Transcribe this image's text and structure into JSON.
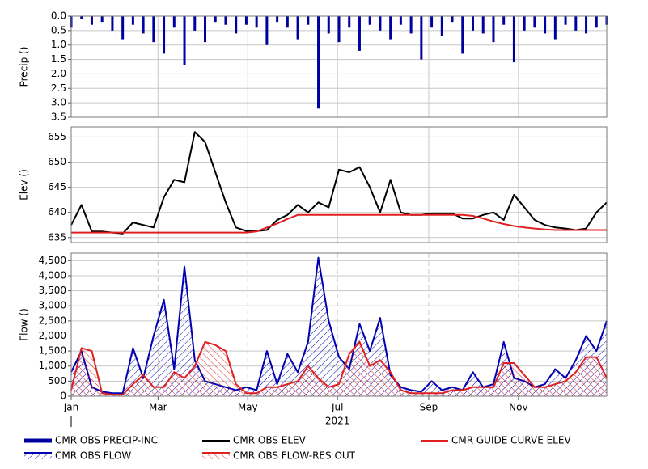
{
  "chart_data": [
    {
      "type": "bar",
      "ylabel": "Precip ()",
      "inverted": true,
      "grid": true,
      "x": [
        1,
        8,
        15,
        22,
        29,
        36,
        43,
        50,
        57,
        64,
        71,
        78,
        85,
        92,
        99,
        106,
        113,
        120,
        127,
        134,
        141,
        148,
        155,
        162,
        169,
        176,
        183,
        190,
        197,
        204,
        211,
        218,
        225,
        232,
        239,
        246,
        253,
        260,
        267,
        274,
        281,
        288,
        295,
        302,
        309,
        316,
        323,
        330,
        337,
        344,
        351,
        358,
        365
      ],
      "xlim": [
        1,
        365
      ],
      "xticks": [
        1,
        60,
        121,
        182,
        244,
        305
      ],
      "ylim": [
        0,
        3.5
      ],
      "yticks": [
        {
          "value": 0,
          "label": "0.0"
        },
        0.5,
        {
          "value": 1,
          "label": "1.0"
        },
        1.5,
        {
          "value": 2,
          "label": "2.0"
        },
        2.5,
        {
          "value": 3,
          "label": "3.0"
        },
        3.5
      ],
      "series": [
        {
          "name": "CMR OBS PRECIP-INC",
          "color": "#0000a0",
          "values": [
            0.4,
            0.1,
            0.3,
            0.2,
            0.5,
            0.8,
            0.3,
            0.6,
            0.9,
            1.3,
            0.4,
            1.7,
            0.5,
            0.9,
            0.2,
            0.3,
            0.6,
            0.3,
            0.4,
            1.0,
            0.2,
            0.4,
            0.8,
            0.3,
            3.2,
            0.6,
            0.9,
            0.4,
            1.2,
            0.3,
            0.5,
            0.8,
            0.3,
            0.6,
            1.5,
            0.4,
            0.7,
            0.2,
            1.3,
            0.5,
            0.6,
            0.9,
            0.3,
            1.6,
            0.5,
            0.4,
            0.6,
            0.8,
            0.3,
            0.5,
            0.6,
            0.4,
            0.3
          ]
        }
      ]
    },
    {
      "type": "line",
      "ylabel": "Elev ()",
      "grid": true,
      "x": [
        1,
        8,
        15,
        22,
        29,
        36,
        43,
        50,
        57,
        64,
        71,
        78,
        85,
        92,
        99,
        106,
        113,
        120,
        127,
        134,
        141,
        148,
        155,
        162,
        169,
        176,
        183,
        190,
        197,
        204,
        211,
        218,
        225,
        232,
        239,
        246,
        253,
        260,
        267,
        274,
        281,
        288,
        295,
        302,
        309,
        316,
        323,
        330,
        337,
        344,
        351,
        358,
        365
      ],
      "xlim": [
        1,
        365
      ],
      "xticks": [
        1,
        60,
        121,
        182,
        244,
        305
      ],
      "ylim": [
        634,
        657
      ],
      "yticks": [
        635,
        640,
        645,
        650,
        655
      ],
      "series": [
        {
          "name": "CMR OBS ELEV",
          "color": "#000000",
          "values": [
            637.5,
            641.5,
            636.2,
            636.2,
            636,
            635.8,
            638,
            637.5,
            637,
            643,
            646.5,
            646,
            656,
            654,
            648,
            642,
            637,
            636.3,
            636.3,
            636.5,
            638.5,
            639.5,
            641.5,
            640,
            642,
            641,
            648.5,
            648,
            649,
            645,
            640,
            646.5,
            640,
            639.5,
            639.5,
            639.8,
            639.8,
            639.8,
            638.8,
            638.8,
            639.5,
            640,
            638.5,
            643.5,
            641,
            638.5,
            637.5,
            637,
            636.8,
            636.5,
            636.8,
            640,
            642
          ]
        },
        {
          "name": "CMR GUIDE CURVE ELEV",
          "color": "#e02020",
          "values": [
            636,
            636,
            636,
            636,
            636,
            636,
            636,
            636,
            636,
            636,
            636,
            636,
            636,
            636,
            636,
            636,
            636,
            636,
            636.2,
            637,
            637.8,
            638.7,
            639.5,
            639.5,
            639.5,
            639.5,
            639.5,
            639.5,
            639.5,
            639.5,
            639.5,
            639.5,
            639.5,
            639.5,
            639.5,
            639.5,
            639.5,
            639.5,
            639.5,
            639.3,
            638.8,
            638.2,
            637.7,
            637.3,
            637,
            636.8,
            636.6,
            636.5,
            636.5,
            636.5,
            636.5,
            636.5,
            636.5
          ]
        }
      ]
    },
    {
      "type": "area",
      "ylabel": "Flow ()",
      "grid": true,
      "x_label": "2021",
      "x": [
        1,
        8,
        15,
        22,
        29,
        36,
        43,
        50,
        57,
        64,
        71,
        78,
        85,
        92,
        99,
        106,
        113,
        120,
        127,
        134,
        141,
        148,
        155,
        162,
        169,
        176,
        183,
        190,
        197,
        204,
        211,
        218,
        225,
        232,
        239,
        246,
        253,
        260,
        267,
        274,
        281,
        288,
        295,
        302,
        309,
        316,
        323,
        330,
        337,
        344,
        351,
        358,
        365
      ],
      "xlim": [
        1,
        365
      ],
      "xticks": [
        {
          "value": 1,
          "label": "Jan"
        },
        {
          "value": 60,
          "label": "Mar"
        },
        {
          "value": 121,
          "label": "May"
        },
        {
          "value": 182,
          "label": "Jul"
        },
        {
          "value": 244,
          "label": "Sep"
        },
        {
          "value": 305,
          "label": "Nov"
        }
      ],
      "ylim": [
        0,
        4750
      ],
      "yticks": [
        0,
        500,
        {
          "value": 1000,
          "label": "1,000"
        },
        {
          "value": 1500,
          "label": "1,500"
        },
        {
          "value": 2000,
          "label": "2,000"
        },
        {
          "value": 2500,
          "label": "2,500"
        },
        {
          "value": 3000,
          "label": "3,000"
        },
        {
          "value": 3500,
          "label": "3,500"
        },
        {
          "value": 4000,
          "label": "4,000"
        },
        {
          "value": 4500,
          "label": "4,500"
        }
      ],
      "series": [
        {
          "name": "CMR OBS FLOW",
          "color": "#0000b0",
          "values": [
            800,
            1500,
            300,
            150,
            100,
            100,
            1600,
            600,
            2000,
            3200,
            900,
            4300,
            1200,
            500,
            400,
            300,
            200,
            300,
            200,
            1500,
            400,
            1400,
            800,
            1800,
            4600,
            2500,
            1300,
            900,
            2400,
            1500,
            2600,
            700,
            300,
            200,
            150,
            500,
            200,
            300,
            200,
            800,
            300,
            400,
            1800,
            600,
            500,
            300,
            400,
            900,
            600,
            1200,
            2000,
            1500,
            2500
          ]
        },
        {
          "name": "CMR OBS FLOW-RES OUT",
          "color": "#e02020",
          "values": [
            200,
            1600,
            1500,
            100,
            50,
            50,
            400,
            700,
            300,
            300,
            800,
            600,
            1000,
            1800,
            1700,
            1500,
            400,
            100,
            100,
            300,
            300,
            400,
            500,
            1000,
            600,
            300,
            400,
            1400,
            1800,
            1000,
            1200,
            800,
            200,
            100,
            100,
            100,
            100,
            200,
            200,
            300,
            300,
            300,
            1100,
            1100,
            700,
            300,
            300,
            400,
            500,
            800,
            1300,
            1300,
            600
          ]
        }
      ]
    }
  ]
}
